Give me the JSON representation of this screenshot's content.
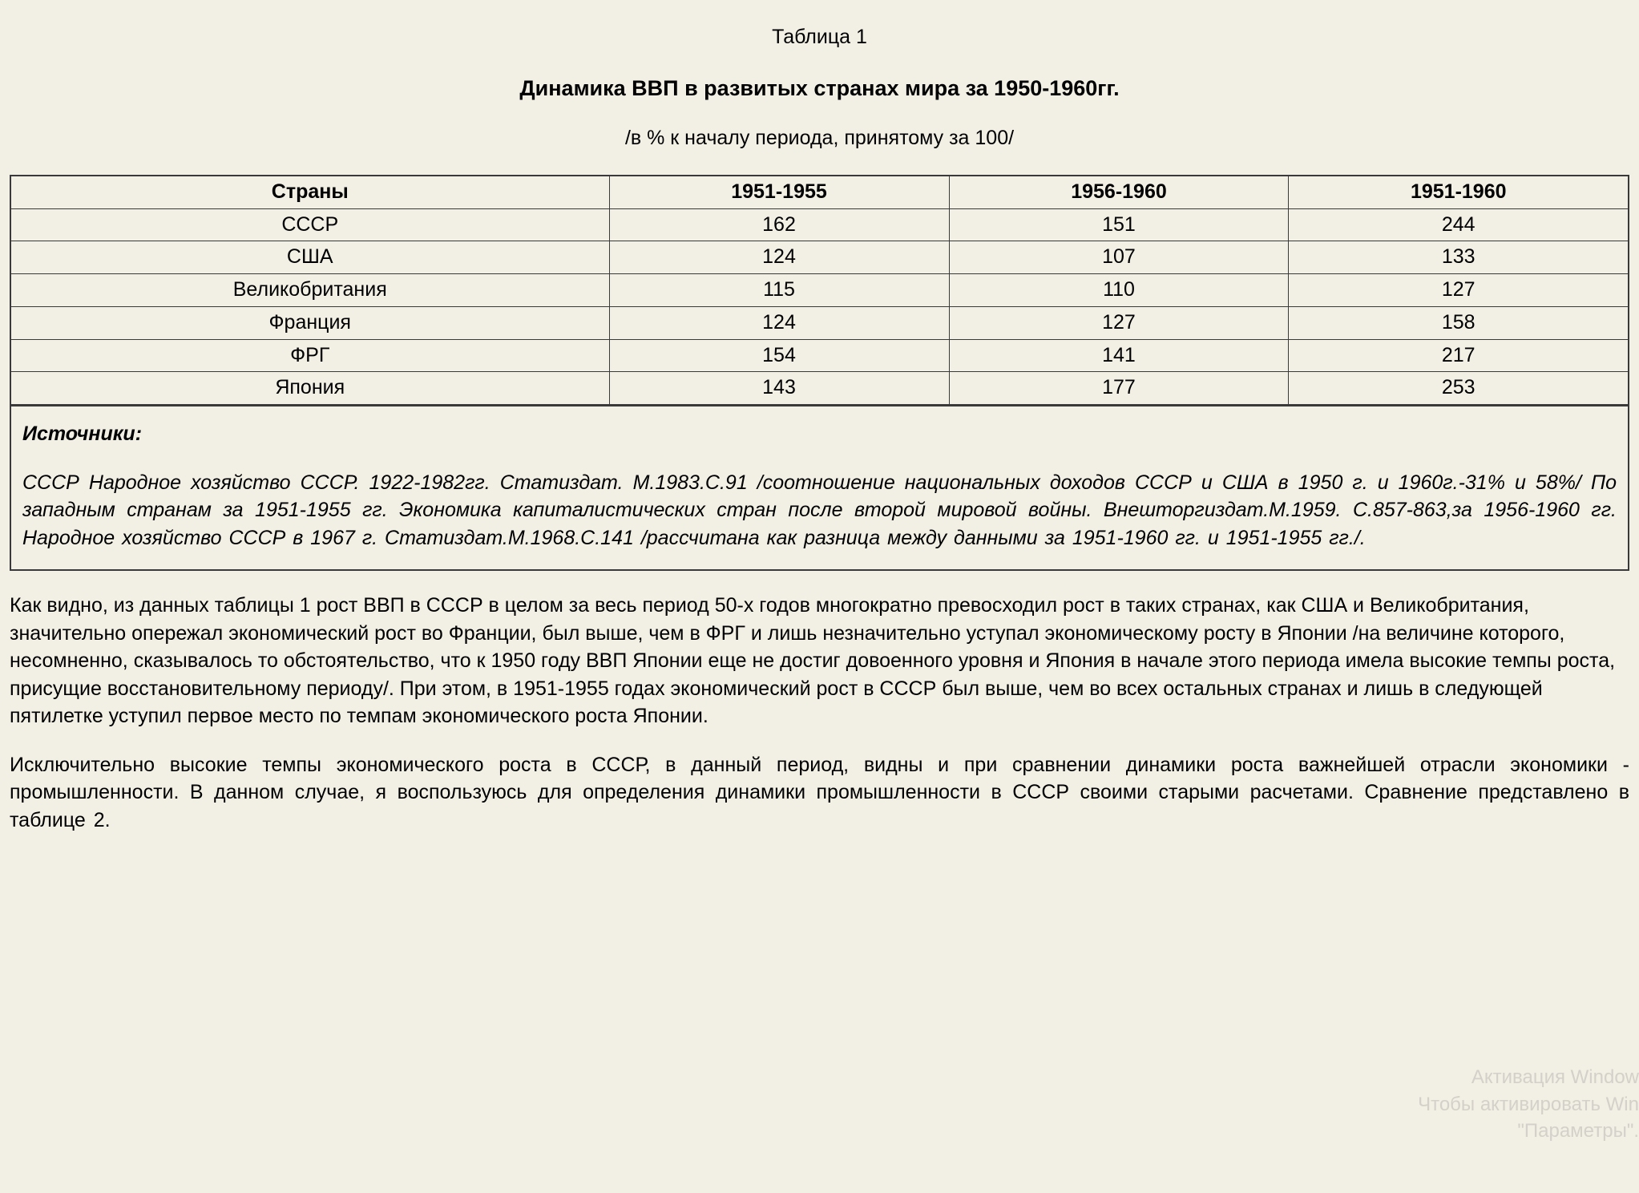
{
  "header": {
    "table_label": "Таблица 1",
    "title": "Динамика ВВП в развитых странах мира за 1950-1960гг.",
    "subtitle": "/в % к началу периода, принятому за 100/"
  },
  "table": {
    "columns": [
      "Страны",
      "1951-1955",
      "1956-1960",
      "1951-1960"
    ],
    "rows": [
      [
        "СССР",
        "162",
        "151",
        "244"
      ],
      [
        "США",
        "124",
        "107",
        "133"
      ],
      [
        "Великобритания",
        "115",
        "110",
        "127"
      ],
      [
        "Франция",
        "124",
        "127",
        "158"
      ],
      [
        "ФРГ",
        "154",
        "141",
        "217"
      ],
      [
        "Япония",
        "143",
        "177",
        "253"
      ]
    ],
    "border_color": "#3a3a3a",
    "header_font_weight": "bold",
    "cell_align": "center"
  },
  "sources": {
    "heading": "Источники:",
    "text": "СССР Народное хозяйство СССР. 1922-1982гг. Статиздат. М.1983.С.91 /соотношение национальных доходов СССР  и США в 1950 г. и 1960г.-31% и 58%/ По западным странам за 1951-1955 гг. Экономика  капиталистических стран  после  второй  мировой  войны. Внешторгиздат.М.1959. С.857-863,за 1956-1960 гг. Народное хозяйство СССР в  1967  г. Статиздат.М.1968.С.141 /рассчитана  как  разница  между  данными  за 1951-1960 гг. и 1951-1955 гг./."
  },
  "paragraphs": {
    "p1": " Как видно, из данных таблицы 1 рост ВВП в СССР в целом за весь период 50-х годов многократно превосходил рост в таких странах, как  США  и Великобритания, значительно  опережал экономический рост во Франции, был выше, чем в ФРГ и лишь незначительно  уступал  экономическому  росту  в Японии /на  величине которого, несомненно, сказывалось то обстоятельство, что к 1950 году ВВП Японии еще не достиг довоенного уровня и Япония в  начале этого периода имела высокие темпы роста, присущие восстановительному периоду/. При этом,  в 1951-1955 годах экономический  рост  в СССР  был  выше, чем во всех остальных странах и лишь в следующей пятилетке уступил первое место по темпам экономического роста Японии.",
    "p2": "Исключительно  высокие  темпы  экономического  роста  в СССР,  в   данный  период,  видны  и  при  сравнении  динамики роста  важнейшей  отрасли  экономики  -  промышленности.  В  данном  случае,  я  воспользуюсь  для  определения динамики  промышленности  в СССР своими старыми расчетами. Сравнение представлено в таблице 2."
  },
  "watermark": {
    "line1": "Активация Window",
    "line2": "Чтобы активировать Win",
    "line3": "\"Параметры\"."
  },
  "style": {
    "background_color": "#f2efe4",
    "text_color": "#000000",
    "font_family": "Arial",
    "base_fontsize": 25,
    "title_fontsize": 27
  }
}
